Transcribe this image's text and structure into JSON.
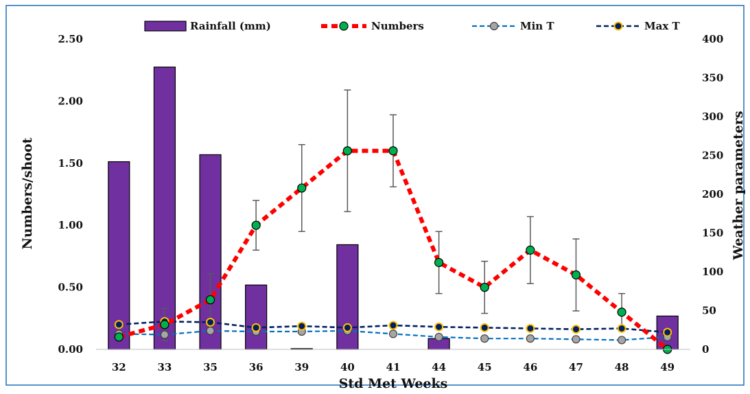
{
  "chart_data": {
    "type": "bar+line",
    "categories": [
      "32",
      "33",
      "35",
      "36",
      "39",
      "40",
      "41",
      "44",
      "45",
      "46",
      "47",
      "48",
      "49"
    ],
    "xlabel": "Std Met Weeks",
    "ylabel_left": "Numbers/shoot",
    "ylabel_right": "Weather parameters",
    "ylim_left": [
      0,
      2.5
    ],
    "ylim_right": [
      0,
      400
    ],
    "yticks_left": [
      "0.00",
      "0.50",
      "1.00",
      "1.50",
      "2.00",
      "2.50"
    ],
    "yticks_right": [
      "0",
      "50",
      "100",
      "150",
      "200",
      "250",
      "300",
      "350",
      "400"
    ],
    "legend_position": "top",
    "series": [
      {
        "name": "Rainfall (mm)",
        "type": "bar",
        "axis": "right",
        "color": "#7030A0",
        "values": [
          242,
          364,
          251,
          83,
          1,
          135,
          0,
          14,
          0,
          0,
          0,
          0,
          43
        ]
      },
      {
        "name": "Numbers",
        "type": "line",
        "axis": "left",
        "color": "#FF0000",
        "marker_color": "#00B050",
        "values": [
          0.1,
          0.2,
          0.4,
          1.0,
          1.3,
          1.6,
          1.6,
          0.7,
          0.5,
          0.8,
          0.6,
          0.3,
          0.0
        ],
        "error": [
          0.0,
          0.13,
          0.21,
          0.2,
          0.35,
          0.49,
          0.29,
          0.25,
          0.21,
          0.27,
          0.29,
          0.15,
          0.0
        ]
      },
      {
        "name": "Min T",
        "type": "line",
        "axis": "right",
        "color": "#0070C0",
        "marker_color": "#A6A6A6",
        "values": [
          20,
          19,
          24,
          23,
          23,
          24,
          20,
          16,
          14,
          14,
          13,
          12,
          16
        ]
      },
      {
        "name": "Max T",
        "type": "line",
        "axis": "right",
        "color": "#002060",
        "marker_color": "#002060",
        "marker_edge": "#FFC000",
        "values": [
          32,
          36,
          35,
          28,
          30,
          28,
          31,
          29,
          28,
          27,
          26,
          27,
          22
        ]
      }
    ]
  }
}
